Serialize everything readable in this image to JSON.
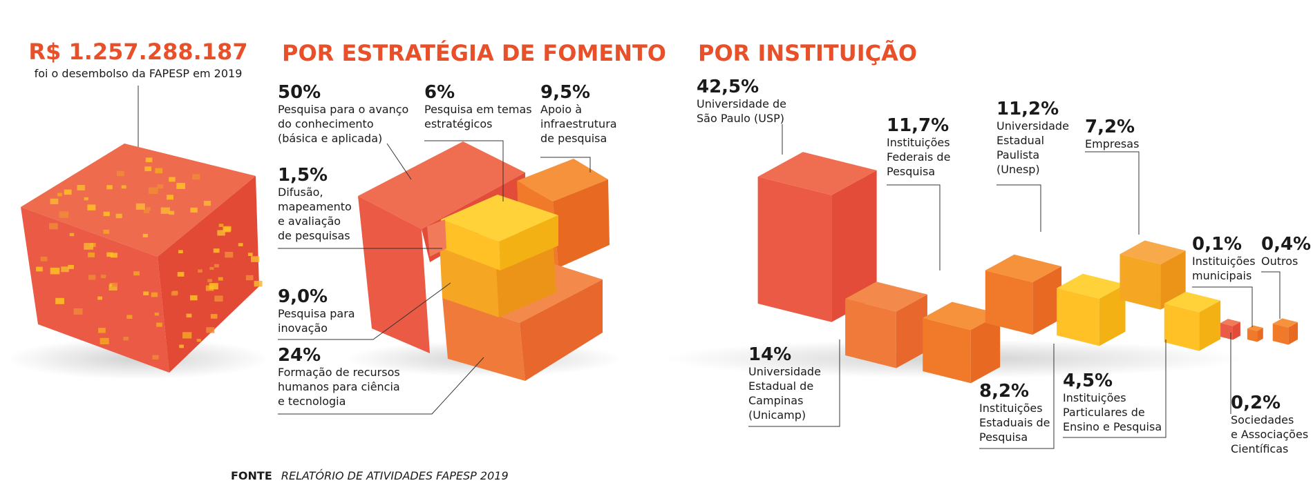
{
  "header": {
    "total_value": "R$ 1.257.288.187",
    "total_caption": "foi o desembolso da FAPESP em 2019"
  },
  "source": {
    "label": "FONTE",
    "text": "RELATÓRIO DE ATIVIDADES FAPESP 2019"
  },
  "colors": {
    "accent": "#e8502a",
    "red": "#ea5a44",
    "orange": "#f07a2a",
    "amber": "#f5a623",
    "yellow": "#ffc125"
  },
  "chart_data": [
    {
      "type": "bar",
      "title": "POR ESTRATÉGIA DE FOMENTO",
      "categories": [
        "Pesquisa para o avanço do conhecimento (básica e aplicada)",
        "Pesquisa em temas estratégicos",
        "Apoio à infraestrutura de pesquisa",
        "Difusão, mapeamento e avaliação de pesquisas",
        "Pesquisa para inovação",
        "Formação de recursos humanos para ciência e tecnologia"
      ],
      "values": [
        50,
        6,
        9.5,
        1.5,
        9.0,
        24
      ],
      "value_labels": [
        "50%",
        "6%",
        "9,5%",
        "1,5%",
        "9,0%",
        "24%"
      ],
      "label_lines": [
        [
          "Pesquisa para o avanço",
          "do conhecimento",
          "(básica e aplicada)"
        ],
        [
          "Pesquisa em temas",
          "estratégicos"
        ],
        [
          "Apoio à",
          "infraestrutura",
          "de pesquisa"
        ],
        [
          "Difusão,",
          "mapeamento",
          "e avaliação",
          "de pesquisas"
        ],
        [
          "Pesquisa para",
          "inovação"
        ],
        [
          "Formação de recursos",
          "humanos para ciência",
          "e tecnologia"
        ]
      ]
    },
    {
      "type": "bar",
      "title": "POR INSTITUIÇÃO",
      "categories": [
        "Universidade de São Paulo (USP)",
        "Universidade Estadual de Campinas (Unicamp)",
        "Instituições Federais de Pesquisa",
        "Universidade Estadual Paulista (Unesp)",
        "Instituições Estaduais de Pesquisa",
        "Empresas",
        "Instituições Particulares de Ensino e Pesquisa",
        "Sociedades e Associações Científicas",
        "Instituições municipais",
        "Outros"
      ],
      "values": [
        42.5,
        14,
        11.7,
        11.2,
        8.2,
        7.2,
        4.5,
        0.2,
        0.1,
        0.4
      ],
      "value_labels": [
        "42,5%",
        "14%",
        "11,7%",
        "11,2%",
        "8,2%",
        "7,2%",
        "4,5%",
        "0,2%",
        "0,1%",
        "0,4%"
      ],
      "label_lines": [
        [
          "Universidade de",
          "São Paulo (USP)"
        ],
        [
          "Universidade",
          "Estadual de",
          "Campinas",
          "(Unicamp)"
        ],
        [
          "Instituições",
          "Federais de",
          "Pesquisa"
        ],
        [
          "Universidade",
          "Estadual",
          "Paulista",
          "(Unesp)"
        ],
        [
          "Instituições",
          "Estaduais de",
          "Pesquisa"
        ],
        [
          "Empresas"
        ],
        [
          "Instituições",
          "Particulares de",
          "Ensino e Pesquisa"
        ],
        [
          "Sociedades",
          "e Associações",
          "Científicas"
        ],
        [
          "Instituições",
          "municipais"
        ],
        [
          "Outros"
        ]
      ]
    }
  ]
}
